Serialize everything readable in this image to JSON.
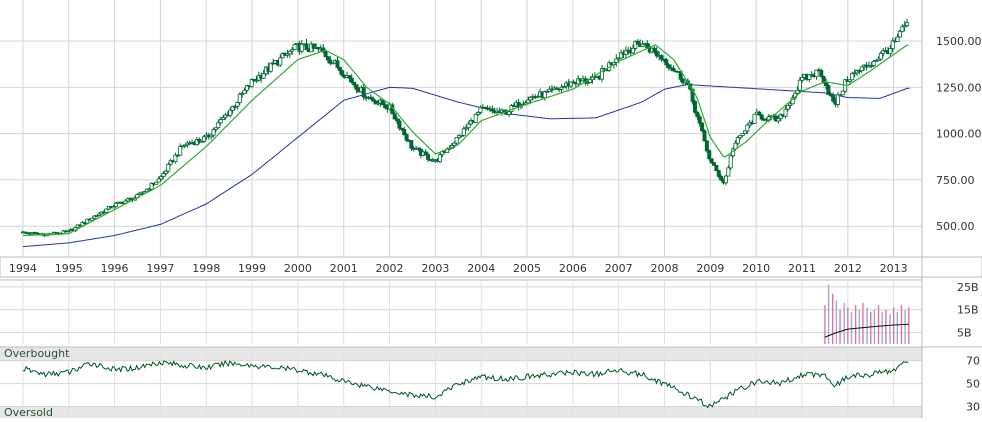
{
  "chart_data": [
    {
      "type": "candlestick",
      "title": "",
      "xlabel": "",
      "ylabel": "",
      "x_ticks": [
        "1994",
        "1995",
        "1996",
        "1997",
        "1998",
        "1999",
        "2000",
        "2001",
        "2002",
        "2003",
        "2004",
        "2005",
        "2006",
        "2007",
        "2008",
        "2009",
        "2010",
        "2011",
        "2012",
        "2013"
      ],
      "y_ticks": [
        "500.00",
        "750.00",
        "1000.00",
        "1250.00",
        "1500.00"
      ],
      "ylim": [
        350,
        1700
      ],
      "grid": true,
      "colors": {
        "up_candle": "#ffffff",
        "down_candle": "#006633",
        "short_ma": "#33aa33",
        "long_ma": "#2233aa",
        "grid": "#cccccc"
      },
      "closes_by_year": [
        {
          "year": 1994.0,
          "close": 465
        },
        {
          "year": 1994.5,
          "close": 455
        },
        {
          "year": 1995.0,
          "close": 470
        },
        {
          "year": 1995.5,
          "close": 545
        },
        {
          "year": 1996.0,
          "close": 615
        },
        {
          "year": 1996.5,
          "close": 660
        },
        {
          "year": 1997.0,
          "close": 760
        },
        {
          "year": 1997.5,
          "close": 940
        },
        {
          "year": 1998.0,
          "close": 975
        },
        {
          "year": 1998.5,
          "close": 1120
        },
        {
          "year": 1999.0,
          "close": 1280
        },
        {
          "year": 1999.5,
          "close": 1380
        },
        {
          "year": 2000.0,
          "close": 1470
        },
        {
          "year": 2000.5,
          "close": 1450
        },
        {
          "year": 2001.0,
          "close": 1330
        },
        {
          "year": 2001.5,
          "close": 1200
        },
        {
          "year": 2002.0,
          "close": 1140
        },
        {
          "year": 2002.5,
          "close": 920
        },
        {
          "year": 2003.0,
          "close": 850
        },
        {
          "year": 2003.5,
          "close": 980
        },
        {
          "year": 2004.0,
          "close": 1130
        },
        {
          "year": 2004.5,
          "close": 1110
        },
        {
          "year": 2005.0,
          "close": 1190
        },
        {
          "year": 2005.5,
          "close": 1220
        },
        {
          "year": 2006.0,
          "close": 1280
        },
        {
          "year": 2006.5,
          "close": 1290
        },
        {
          "year": 2007.0,
          "close": 1430
        },
        {
          "year": 2007.5,
          "close": 1490
        },
        {
          "year": 2008.0,
          "close": 1400
        },
        {
          "year": 2008.5,
          "close": 1270
        },
        {
          "year": 2009.0,
          "close": 850
        },
        {
          "year": 2009.3,
          "close": 730
        },
        {
          "year": 2009.5,
          "close": 930
        },
        {
          "year": 2010.0,
          "close": 1100
        },
        {
          "year": 2010.5,
          "close": 1070
        },
        {
          "year": 2011.0,
          "close": 1290
        },
        {
          "year": 2011.4,
          "close": 1340
        },
        {
          "year": 2011.7,
          "close": 1150
        },
        {
          "year": 2012.0,
          "close": 1300
        },
        {
          "year": 2012.5,
          "close": 1380
        },
        {
          "year": 2013.0,
          "close": 1480
        },
        {
          "year": 2013.3,
          "close": 1600
        }
      ],
      "short_moving_average": [
        {
          "year": 1994.0,
          "value": 450
        },
        {
          "year": 1995.0,
          "value": 460
        },
        {
          "year": 1996.0,
          "value": 590
        },
        {
          "year": 1997.0,
          "value": 720
        },
        {
          "year": 1998.0,
          "value": 930
        },
        {
          "year": 1999.0,
          "value": 1180
        },
        {
          "year": 2000.0,
          "value": 1400
        },
        {
          "year": 2000.6,
          "value": 1450
        },
        {
          "year": 2001.0,
          "value": 1400
        },
        {
          "year": 2001.5,
          "value": 1250
        },
        {
          "year": 2002.0,
          "value": 1160
        },
        {
          "year": 2002.5,
          "value": 1010
        },
        {
          "year": 2003.0,
          "value": 890
        },
        {
          "year": 2003.5,
          "value": 940
        },
        {
          "year": 2004.0,
          "value": 1070
        },
        {
          "year": 2005.0,
          "value": 1160
        },
        {
          "year": 2006.0,
          "value": 1240
        },
        {
          "year": 2007.0,
          "value": 1390
        },
        {
          "year": 2007.8,
          "value": 1480
        },
        {
          "year": 2008.2,
          "value": 1400
        },
        {
          "year": 2008.7,
          "value": 1200
        },
        {
          "year": 2009.0,
          "value": 980
        },
        {
          "year": 2009.3,
          "value": 870
        },
        {
          "year": 2009.8,
          "value": 960
        },
        {
          "year": 2010.3,
          "value": 1080
        },
        {
          "year": 2011.0,
          "value": 1230
        },
        {
          "year": 2011.5,
          "value": 1280
        },
        {
          "year": 2012.0,
          "value": 1260
        },
        {
          "year": 2012.5,
          "value": 1340
        },
        {
          "year": 2013.3,
          "value": 1480
        }
      ],
      "long_moving_average": [
        {
          "year": 1994.0,
          "value": 390
        },
        {
          "year": 1995.0,
          "value": 410
        },
        {
          "year": 1996.0,
          "value": 450
        },
        {
          "year": 1997.0,
          "value": 510
        },
        {
          "year": 1998.0,
          "value": 620
        },
        {
          "year": 1999.0,
          "value": 780
        },
        {
          "year": 2000.0,
          "value": 980
        },
        {
          "year": 2001.0,
          "value": 1180
        },
        {
          "year": 2002.0,
          "value": 1250
        },
        {
          "year": 2002.5,
          "value": 1245
        },
        {
          "year": 2003.5,
          "value": 1170
        },
        {
          "year": 2004.5,
          "value": 1110
        },
        {
          "year": 2005.5,
          "value": 1080
        },
        {
          "year": 2006.5,
          "value": 1085
        },
        {
          "year": 2007.5,
          "value": 1170
        },
        {
          "year": 2008.0,
          "value": 1240
        },
        {
          "year": 2008.5,
          "value": 1265
        },
        {
          "year": 2009.5,
          "value": 1250
        },
        {
          "year": 2010.5,
          "value": 1235
        },
        {
          "year": 2011.5,
          "value": 1220
        },
        {
          "year": 2012.0,
          "value": 1195
        },
        {
          "year": 2012.7,
          "value": 1190
        },
        {
          "year": 2013.3,
          "value": 1245
        }
      ]
    },
    {
      "type": "bar",
      "title": "",
      "y_ticks": [
        "25B",
        "15B",
        "5B"
      ],
      "ylim": [
        0,
        28
      ],
      "volume_bars": [
        {
          "year": 2011.5,
          "value": 17
        },
        {
          "year": 2011.58,
          "value": 26
        },
        {
          "year": 2011.67,
          "value": 22
        },
        {
          "year": 2011.75,
          "value": 19
        },
        {
          "year": 2011.83,
          "value": 15
        },
        {
          "year": 2011.92,
          "value": 18
        },
        {
          "year": 2012.0,
          "value": 16
        },
        {
          "year": 2012.08,
          "value": 14
        },
        {
          "year": 2012.17,
          "value": 17
        },
        {
          "year": 2012.25,
          "value": 15
        },
        {
          "year": 2012.33,
          "value": 18
        },
        {
          "year": 2012.42,
          "value": 16
        },
        {
          "year": 2012.5,
          "value": 14
        },
        {
          "year": 2012.58,
          "value": 15
        },
        {
          "year": 2012.67,
          "value": 17
        },
        {
          "year": 2012.75,
          "value": 14
        },
        {
          "year": 2012.83,
          "value": 15
        },
        {
          "year": 2012.92,
          "value": 13
        },
        {
          "year": 2013.0,
          "value": 16
        },
        {
          "year": 2013.08,
          "value": 14
        },
        {
          "year": 2013.17,
          "value": 17
        },
        {
          "year": 2013.25,
          "value": 15
        },
        {
          "year": 2013.33,
          "value": 16
        }
      ],
      "volume_average": [
        {
          "year": 2011.5,
          "value": 3
        },
        {
          "year": 2011.75,
          "value": 5
        },
        {
          "year": 2012.0,
          "value": 6.5
        },
        {
          "year": 2012.5,
          "value": 7.5
        },
        {
          "year": 2013.0,
          "value": 8.3
        },
        {
          "year": 2013.33,
          "value": 8.6
        }
      ],
      "colors": {
        "down_bar": "#dd7799",
        "up_bar": "#99aadd",
        "average": "#111111"
      }
    },
    {
      "type": "line",
      "title": "",
      "bands": {
        "upper_label": "Overbought",
        "lower_label": "Oversold"
      },
      "y_ticks": [
        "70",
        "50",
        "30"
      ],
      "ylim": [
        20,
        82
      ],
      "rsi": [
        {
          "year": 1994.0,
          "value": 63
        },
        {
          "year": 1994.5,
          "value": 58
        },
        {
          "year": 1995.0,
          "value": 60
        },
        {
          "year": 1995.5,
          "value": 68
        },
        {
          "year": 1996.0,
          "value": 62
        },
        {
          "year": 1996.5,
          "value": 64
        },
        {
          "year": 1997.0,
          "value": 69
        },
        {
          "year": 1997.5,
          "value": 66
        },
        {
          "year": 1998.0,
          "value": 64
        },
        {
          "year": 1998.5,
          "value": 68
        },
        {
          "year": 1999.0,
          "value": 66
        },
        {
          "year": 1999.5,
          "value": 64
        },
        {
          "year": 2000.0,
          "value": 62
        },
        {
          "year": 2000.5,
          "value": 58
        },
        {
          "year": 2001.0,
          "value": 52
        },
        {
          "year": 2001.5,
          "value": 48
        },
        {
          "year": 2002.0,
          "value": 44
        },
        {
          "year": 2002.5,
          "value": 40
        },
        {
          "year": 2003.0,
          "value": 38
        },
        {
          "year": 2003.5,
          "value": 50
        },
        {
          "year": 2004.0,
          "value": 56
        },
        {
          "year": 2004.5,
          "value": 54
        },
        {
          "year": 2005.0,
          "value": 56
        },
        {
          "year": 2005.5,
          "value": 58
        },
        {
          "year": 2006.0,
          "value": 60
        },
        {
          "year": 2006.5,
          "value": 58
        },
        {
          "year": 2007.0,
          "value": 62
        },
        {
          "year": 2007.5,
          "value": 58
        },
        {
          "year": 2008.0,
          "value": 50
        },
        {
          "year": 2008.5,
          "value": 40
        },
        {
          "year": 2009.0,
          "value": 30
        },
        {
          "year": 2009.5,
          "value": 42
        },
        {
          "year": 2010.0,
          "value": 52
        },
        {
          "year": 2010.5,
          "value": 50
        },
        {
          "year": 2011.0,
          "value": 58
        },
        {
          "year": 2011.5,
          "value": 58
        },
        {
          "year": 2011.7,
          "value": 48
        },
        {
          "year": 2012.0,
          "value": 56
        },
        {
          "year": 2012.5,
          "value": 58
        },
        {
          "year": 2013.0,
          "value": 62
        },
        {
          "year": 2013.3,
          "value": 70
        }
      ],
      "colors": {
        "line": "#005522",
        "band": "#e6e6e6"
      }
    }
  ]
}
